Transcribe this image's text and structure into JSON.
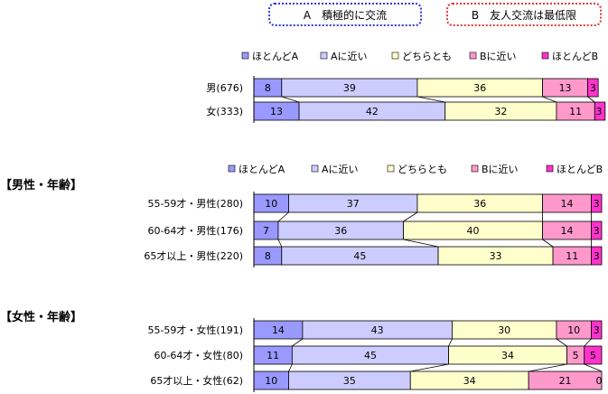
{
  "header": {
    "box_a": "A　積極的に交流",
    "box_b": "B　友人交流は最低限"
  },
  "sections": {
    "male_age_title": "【男性・年齢】",
    "female_age_title": "【女性・年齢】"
  },
  "colors": [
    "#9999ff",
    "#ccccff",
    "#ffffcc",
    "#ff99cc",
    "#ff33cc"
  ],
  "chart_data": [
    {
      "type": "bar",
      "stacked": true,
      "orientation": "horizontal",
      "legend": [
        "ほとんどA",
        "Aに近い",
        "どちらとも",
        "Bに近い",
        "ほとんどB"
      ],
      "legend_position": "top",
      "categories": [
        "男(676)",
        "女(333)"
      ],
      "series": [
        {
          "name": "ほとんどA",
          "values": [
            8,
            13
          ]
        },
        {
          "name": "Aに近い",
          "values": [
            39,
            42
          ]
        },
        {
          "name": "どちらとも",
          "values": [
            36,
            32
          ]
        },
        {
          "name": "Bに近い",
          "values": [
            13,
            11
          ]
        },
        {
          "name": "ほとんどB",
          "values": [
            3,
            3
          ]
        }
      ],
      "xlim": [
        0,
        100
      ]
    },
    {
      "type": "bar",
      "stacked": true,
      "orientation": "horizontal",
      "legend": [
        "ほとんどA",
        "Aに近い",
        "どちらとも",
        "Bに近い",
        "ほとんどB"
      ],
      "legend_position": "top",
      "categories": [
        "55-59才・男性(280)",
        "60-64才・男性(176)",
        "65才以上・男性(220)"
      ],
      "series": [
        {
          "name": "ほとんどA",
          "values": [
            10,
            7,
            8
          ]
        },
        {
          "name": "Aに近い",
          "values": [
            37,
            36,
            45
          ]
        },
        {
          "name": "どちらとも",
          "values": [
            36,
            40,
            33
          ]
        },
        {
          "name": "Bに近い",
          "values": [
            14,
            14,
            11
          ]
        },
        {
          "name": "ほとんどB",
          "values": [
            3,
            3,
            3
          ]
        }
      ],
      "xlim": [
        0,
        100
      ]
    },
    {
      "type": "bar",
      "stacked": true,
      "orientation": "horizontal",
      "categories": [
        "55-59才・女性(191)",
        "60-64才・女性(80)",
        "65才以上・女性(62)"
      ],
      "series": [
        {
          "name": "ほとんどA",
          "values": [
            14,
            11,
            10
          ]
        },
        {
          "name": "Aに近い",
          "values": [
            43,
            45,
            35
          ]
        },
        {
          "name": "どちらとも",
          "values": [
            30,
            34,
            34
          ]
        },
        {
          "name": "Bに近い",
          "values": [
            10,
            5,
            21
          ]
        },
        {
          "name": "ほとんどB",
          "values": [
            3,
            5,
            0
          ]
        }
      ],
      "xlim": [
        0,
        100
      ]
    }
  ]
}
